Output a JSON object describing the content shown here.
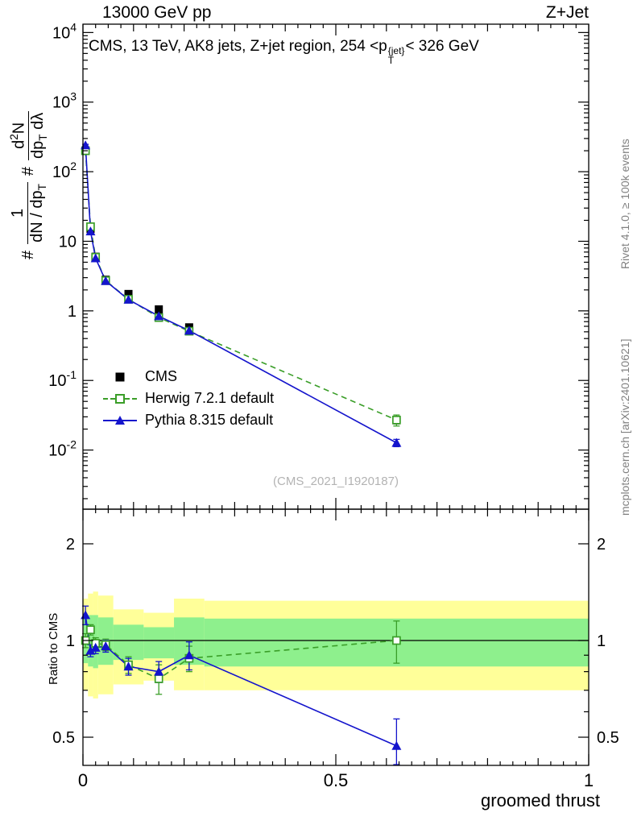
{
  "page": {
    "header_left": "13000 GeV pp",
    "header_right": "Z+Jet",
    "watermark": "(CMS_2021_I1920187)",
    "rivet_label": "Rivet 4.1.0, ≥ 100k events",
    "mcplots_label": "mcplots.cern.ch [arXiv:2401.10621]"
  },
  "chart_data": {
    "type": "line",
    "title_full": "CMS, 13 TeV, AK8 jets, Z+jet region, 254 < pT{jet} < 326 GeV",
    "title_parts": {
      "prefix": "CMS, 13 TeV, AK8 jets, Z+jet region, 254 <p",
      "stack_top": "{jet}",
      "stack_bottom": "T",
      "suffix": "< 326 GeV"
    },
    "xlabel": "groomed thrust",
    "ylabel_full": "# 1/(dN/dpT) # d²N/(dpT dλ)",
    "ylabel_parts": {
      "hash1": "#",
      "frac1_num": "1",
      "den1a": "dN / dp",
      "den1b": "T",
      "hash2": "#",
      "num2a": "d",
      "num2b": "2",
      "num2c": "N",
      "den2a": "dp",
      "den2b": "T",
      "den2c": " dλ"
    },
    "ratio_ylabel": "Ratio to CMS",
    "xlim": [
      0,
      1
    ],
    "ylog": true,
    "ylim": [
      "1e-2.85",
      "1e4.12"
    ],
    "grid": false,
    "legend_position": "middle-left",
    "x_major_ticks": [
      0,
      0.5,
      1
    ],
    "x_tick_labels": [
      "0",
      "0.5",
      "1"
    ],
    "y_tick_exponents": [
      -2,
      -1,
      0,
      1,
      2,
      3,
      4
    ],
    "ratio_ticks": [
      0.5,
      1,
      2
    ],
    "ratio_tick_labels": [
      "0.5",
      "1",
      "2"
    ],
    "ratio_minor_ticks": [
      0.6,
      0.7,
      0.8,
      0.9
    ],
    "x": [
      0.005,
      0.015,
      0.025,
      0.045,
      0.09,
      0.15,
      0.21,
      0.62
    ],
    "series": [
      {
        "name": "CMS",
        "color": "#000000",
        "marker": "square-filled",
        "line": "none",
        "values": [
          200,
          15,
          6.0,
          2.8,
          1.75,
          1.05,
          0.58,
          0.027
        ],
        "yerr_rel": [
          0.06,
          0.05,
          0.05,
          0.05,
          0.06,
          0.08,
          0.1,
          0.12
        ]
      },
      {
        "name": "Herwig 7.2.1 default",
        "color": "#3a9e28",
        "marker": "square-open",
        "line": "dashed",
        "values": [
          200,
          16.2,
          5.9,
          2.72,
          1.47,
          0.8,
          0.51,
          0.027
        ],
        "yerr_rel": [
          0.03,
          0.03,
          0.03,
          0.03,
          0.04,
          0.05,
          0.06,
          0.18
        ]
      },
      {
        "name": "Pythia 8.315 default",
        "color": "#1414cc",
        "marker": "triangle-filled",
        "line": "solid",
        "values": [
          240,
          13.9,
          5.7,
          2.69,
          1.45,
          0.84,
          0.52,
          0.0127
        ],
        "yerr_rel": [
          0.03,
          0.03,
          0.03,
          0.03,
          0.04,
          0.05,
          0.06,
          0.12
        ]
      }
    ],
    "ratio": {
      "series": [
        {
          "name": "Herwig 7.2.1 default",
          "values": [
            1.0,
            1.08,
            0.98,
            0.97,
            0.84,
            0.76,
            0.88,
            1.0
          ],
          "err": [
            0.05,
            0.04,
            0.04,
            0.04,
            0.05,
            0.08,
            0.08,
            0.15
          ]
        },
        {
          "name": "Pythia 8.315 default",
          "values": [
            1.2,
            0.93,
            0.95,
            0.96,
            0.83,
            0.8,
            0.9,
            0.47
          ],
          "err": [
            0.08,
            0.04,
            0.04,
            0.04,
            0.05,
            0.06,
            0.09,
            0.1
          ]
        }
      ],
      "bands": {
        "bins": [
          0,
          0.01,
          0.02,
          0.03,
          0.06,
          0.12,
          0.18,
          0.24,
          1.0
        ],
        "yellow_lo": [
          0.7,
          0.67,
          0.66,
          0.68,
          0.73,
          0.75,
          0.7,
          0.7
        ],
        "yellow_hi": [
          1.35,
          1.4,
          1.42,
          1.38,
          1.25,
          1.22,
          1.35,
          1.33
        ],
        "green_lo": [
          0.85,
          0.83,
          0.82,
          0.84,
          0.87,
          0.88,
          0.84,
          0.83
        ],
        "green_hi": [
          1.17,
          1.2,
          1.2,
          1.18,
          1.12,
          1.1,
          1.18,
          1.17
        ]
      },
      "colors": {
        "yellow": "#ffff99",
        "green": "#8ef08d"
      }
    }
  }
}
